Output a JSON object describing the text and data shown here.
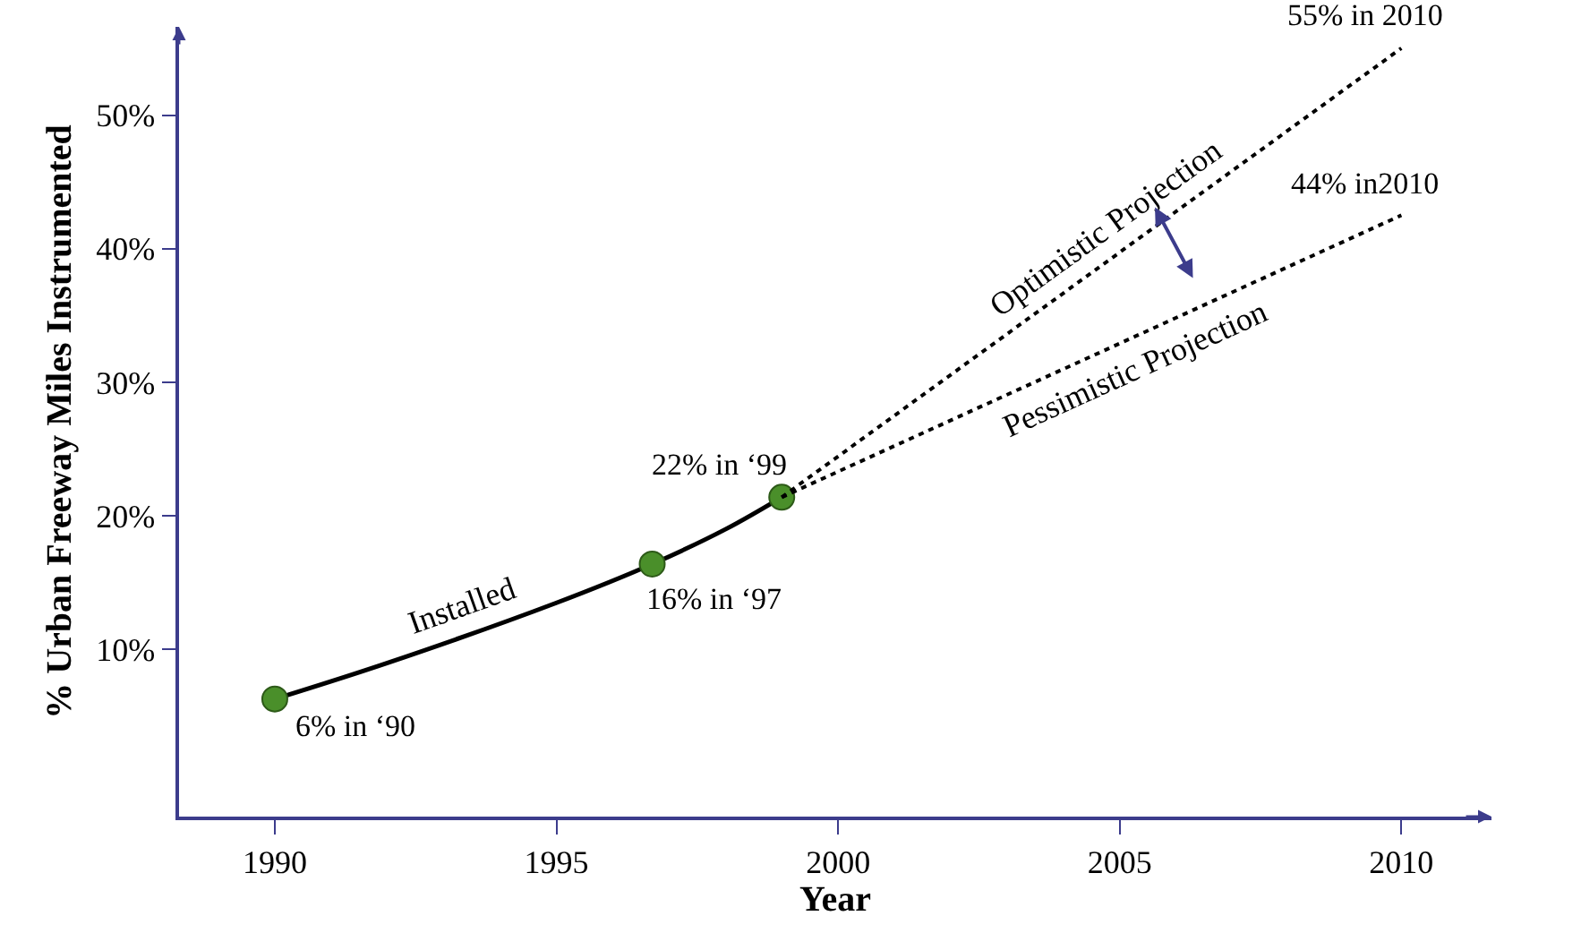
{
  "chart_data": {
    "type": "line",
    "xlabel": "Year",
    "ylabel": "% Urban Freeway Miles Instrumented",
    "xlim": [
      1988.3,
      2011.6
    ],
    "ylim": [
      -2.5,
      56.6
    ],
    "xticks": [
      1990,
      1995,
      2000,
      2005,
      2010
    ],
    "yticks": [
      {
        "value": 10,
        "label": "10%"
      },
      {
        "value": 20,
        "label": "20%"
      },
      {
        "value": 30,
        "label": "30%"
      },
      {
        "value": 40,
        "label": "40%"
      },
      {
        "value": 50,
        "label": "50%"
      }
    ],
    "legend": false,
    "series": [
      {
        "name": "Installed",
        "line_style": "solid",
        "marker": "none",
        "color": "#000000",
        "x": [
          1990,
          1992,
          1995,
          1996.7,
          1998,
          1999
        ],
        "values": [
          6.3,
          9.0,
          13.5,
          16.4,
          19.0,
          21.4
        ]
      },
      {
        "type": "scatter",
        "marker": "circle",
        "color": "#4a8f2a",
        "x": [
          1990,
          1996.7,
          1999
        ],
        "values": [
          6.3,
          16.4,
          21.4
        ]
      },
      {
        "name": "Optimistic Projection",
        "line_style": "dotted",
        "marker": "none",
        "color": "#000000",
        "x": [
          1999,
          2010
        ],
        "values": [
          21.4,
          55.0
        ]
      },
      {
        "name": "Pessimistic Projection",
        "line_style": "dotted",
        "marker": "none",
        "color": "#000000",
        "x": [
          1999,
          2010
        ],
        "values": [
          21.4,
          42.5
        ]
      }
    ],
    "annotations": [
      {
        "text": "6% in ‘90",
        "x": 1990,
        "y": 6.3
      },
      {
        "text": "16% in ‘97",
        "x": 1996.7,
        "y": 16.4
      },
      {
        "text": "22% in ‘99",
        "x": 1999,
        "y": 21.4
      },
      {
        "text": "55% in 2010",
        "x": 2010,
        "y": 55.0
      },
      {
        "text": "44% in2010",
        "x": 2010,
        "y": 42.5
      }
    ]
  }
}
